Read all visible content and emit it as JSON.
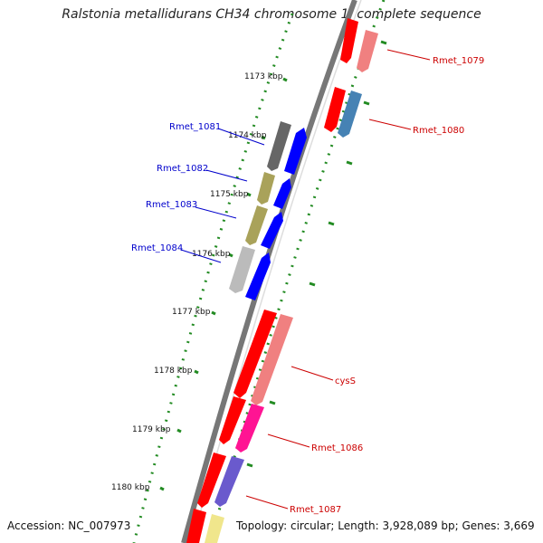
{
  "title": "Ralstonia metallidurans CH34 chromosome 1, complete sequence",
  "accession": "Accession: NC_007973",
  "summary": "Topology: circular; Length: 3,928,089 bp; Genes: 3,669",
  "kbp_labels": [
    "1173 kbp",
    "1174 kbp",
    "1175 kbp",
    "1176 kbp",
    "1177 kbp",
    "1178 kbp",
    "1179 kbp",
    "1180 kbp"
  ],
  "genes_left": [
    {
      "name": "Rmet_1081",
      "color": "#666666",
      "light": "#999999"
    },
    {
      "name": "Rmet_1082",
      "color": "#a9a25a",
      "light": "#cfc98c"
    },
    {
      "name": "Rmet_1083",
      "color": "#a9a25a",
      "light": "#cfc98c"
    },
    {
      "name": "Rmet_1084",
      "color": "#bbbbbb",
      "light": "#e4e4e4"
    }
  ],
  "genes_right": [
    {
      "name": "Rmet_1079",
      "color": "#f08080"
    },
    {
      "name": "Rmet_1080",
      "color": "#4682b4"
    },
    {
      "name": "cysS",
      "color": "#f08080"
    },
    {
      "name": "Rmet_1086",
      "color": "#ff1493"
    },
    {
      "name": "Rmet_1087",
      "color": "#6a5acd"
    }
  ],
  "colors": {
    "strand_red": "#ff0000",
    "strand_blue": "#0000ff",
    "label_blue": "#0000cc",
    "label_red": "#cc0000",
    "tick_green": "#228b22",
    "backbone": "#777777"
  }
}
